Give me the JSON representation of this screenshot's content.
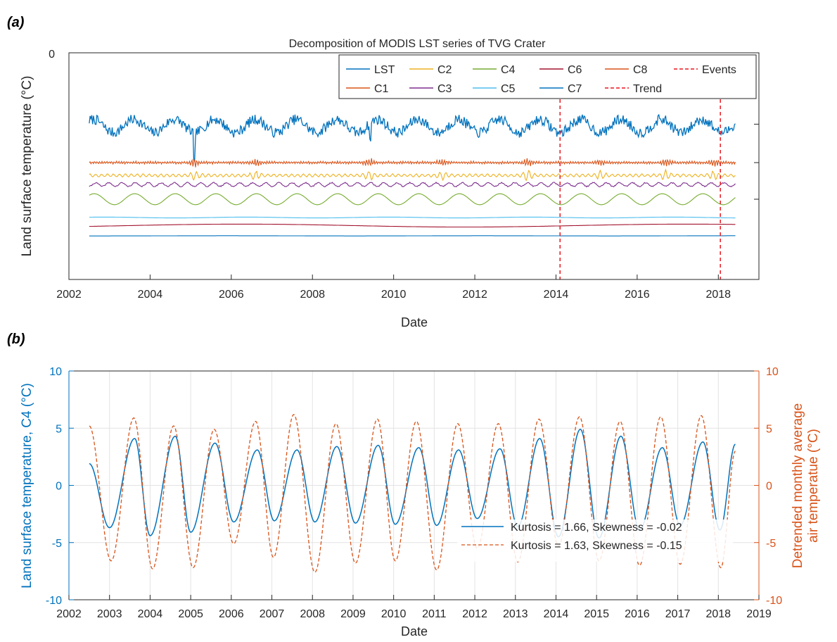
{
  "panel_labels": {
    "a": "(a)",
    "b": "(b)"
  },
  "colors": {
    "LST": "#0072BD",
    "C1": "#D95319",
    "C2": "#EDB120",
    "C3": "#7E2F8E",
    "C4": "#77AC30",
    "C5": "#4DBEEE",
    "C6": "#A2142F",
    "C7": "#0072BD",
    "C8": "#D95319",
    "events": "#E8171E",
    "axis": "#262626",
    "left_axis_b": "#0072BD",
    "right_axis_b": "#D95319"
  },
  "chart_data": [
    {
      "type": "line",
      "title": "Decomposition of MODIS LST series of TVG Crater",
      "xlabel": "Date",
      "ylabel": "Land surface temperature (°C)",
      "xlim": [
        2002,
        2019
      ],
      "x_ticks": [
        "2002",
        "2004",
        "2006",
        "2008",
        "2010",
        "2012",
        "2014",
        "2016",
        "2018"
      ],
      "y_ticks": [
        "0"
      ],
      "grid": false,
      "legend_location": "top-right",
      "legend": [
        "LST",
        "C1",
        "C2",
        "C3",
        "C4",
        "C5",
        "C6",
        "C7",
        "C8",
        "Trend",
        "Events"
      ],
      "series": [
        {
          "name": "LST",
          "x_range": [
            2002.5,
            2018.42
          ],
          "baseline_offset": -1.95,
          "amplitude": 0.18,
          "shape": "annual, noisy"
        },
        {
          "name": "C1",
          "x_range": [
            2002.5,
            2018.42
          ],
          "baseline_offset": -3.0,
          "amplitude": 0.03,
          "shape": "high-frequency oscillation"
        },
        {
          "name": "C2",
          "x_range": [
            2002.5,
            2018.42
          ],
          "baseline_offset": -3.35,
          "amplitude": 0.04,
          "shape": "high-frequency oscillation"
        },
        {
          "name": "C3",
          "x_range": [
            2002.5,
            2018.42
          ],
          "baseline_offset": -3.6,
          "amplitude": 0.05,
          "shape": "sub-annual oscillation"
        },
        {
          "name": "C4",
          "x_range": [
            2002.5,
            2018.42
          ],
          "baseline_offset": -4.0,
          "amplitude": 0.15,
          "shape": "annual cycle"
        },
        {
          "name": "C5",
          "x_range": [
            2002.5,
            2018.42
          ],
          "baseline_offset": -4.5,
          "amplitude": 0.01,
          "shape": "slow variation"
        },
        {
          "name": "C6",
          "x_range": [
            2002.5,
            2018.42
          ],
          "baseline_offset": -4.72,
          "amplitude": 0.04,
          "shape": "slow variation"
        },
        {
          "name": "C7",
          "x_range": [
            2002.5,
            2018.42
          ],
          "baseline_offset": -5.0,
          "amplitude": 0.0,
          "shape": "nearly flat"
        }
      ],
      "events": [
        2014.1,
        2018.05
      ]
    },
    {
      "type": "line",
      "xlabel": "Date",
      "ylabel_left": "Land surface temperature, C4 (°C)",
      "ylabel_right": "Detrended monthly average air temperatue (°C)",
      "xlim": [
        2002,
        2019
      ],
      "ylim": [
        -10,
        10
      ],
      "x_ticks": [
        "2002",
        "2003",
        "2004",
        "2005",
        "2006",
        "2007",
        "2008",
        "2009",
        "2010",
        "2011",
        "2012",
        "2013",
        "2014",
        "2015",
        "2016",
        "2017",
        "2018",
        "2019"
      ],
      "y_ticks_left": [
        "-10",
        "-5",
        "0",
        "5",
        "10"
      ],
      "y_ticks_right": [
        "-10",
        "-5",
        "0",
        "5",
        "10"
      ],
      "grid": true,
      "legend_location": "bottom-right",
      "series": [
        {
          "name": "Kurtosis = 1.66, Skewness = -0.02",
          "style": "solid",
          "start": {
            "x": 2002.5,
            "y": 1.9
          },
          "end": {
            "x": 2018.42,
            "y": 3.6
          },
          "peaks_x": [
            2003.62,
            2004.62,
            2005.6,
            2006.64,
            2007.62,
            2008.6,
            2009.62,
            2010.62,
            2011.6,
            2012.62,
            2013.6,
            2014.6,
            2015.6,
            2016.62,
            2017.62
          ],
          "peaks_y": [
            4.1,
            4.3,
            3.7,
            3.1,
            3.1,
            3.4,
            3.5,
            3.3,
            3.1,
            3.2,
            4.1,
            4.9,
            4.3,
            3.3,
            3.8
          ],
          "troughs_x": [
            2003.0,
            2004.0,
            2005.0,
            2006.06,
            2007.06,
            2008.06,
            2009.06,
            2010.04,
            2011.06,
            2012.06,
            2013.06,
            2014.06,
            2015.06,
            2016.06,
            2017.06,
            2018.04
          ],
          "troughs_y": [
            -3.7,
            -4.4,
            -4.1,
            -3.2,
            -3.1,
            -3.2,
            -3.3,
            -3.4,
            -3.5,
            -2.9,
            -3.6,
            -4.5,
            -4.6,
            -3.9,
            -3.5,
            -3.9
          ]
        },
        {
          "name": "Kurtosis = 1.63, Skewness = -0.15",
          "style": "dashed",
          "start": {
            "x": 2002.5,
            "y": 5.2
          },
          "end": {
            "x": 2018.42,
            "y": 3.0
          },
          "peaks_x": [
            2003.6,
            2004.58,
            2005.58,
            2006.6,
            2007.54,
            2008.58,
            2009.6,
            2010.56,
            2011.58,
            2012.58,
            2013.58,
            2014.58,
            2015.58,
            2016.58,
            2017.58
          ],
          "peaks_y": [
            5.9,
            5.2,
            4.9,
            5.6,
            6.2,
            5.4,
            5.8,
            5.6,
            5.4,
            5.4,
            5.8,
            6.0,
            5.6,
            6.0,
            6.1
          ],
          "troughs_x": [
            2003.04,
            2004.06,
            2005.06,
            2006.06,
            2007.04,
            2008.06,
            2009.06,
            2010.04,
            2011.06,
            2012.06,
            2013.06,
            2014.06,
            2015.06,
            2016.06,
            2017.06,
            2018.06
          ],
          "troughs_y": [
            -6.6,
            -7.3,
            -7.2,
            -5.1,
            -6.3,
            -7.6,
            -6.8,
            -6.6,
            -7.4,
            -5.5,
            -6.7,
            -5.3,
            -6.6,
            -7.0,
            -6.9,
            -7.2
          ]
        }
      ]
    }
  ]
}
